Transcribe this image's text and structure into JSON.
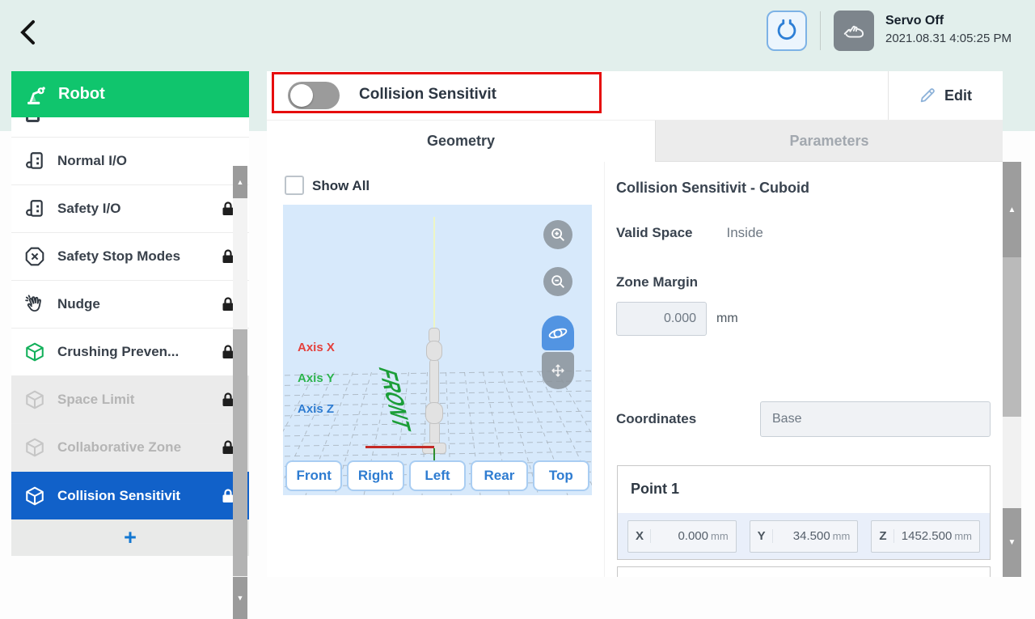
{
  "top_bar": {
    "status_title": "Servo Off",
    "status_time": "2021.08.31 4:05:25 PM"
  },
  "sidebar": {
    "title": "Robot",
    "items": [
      {
        "label": "Normal I/O",
        "icon": "io-icon",
        "locked": false,
        "state": "normal"
      },
      {
        "label": "Safety I/O",
        "icon": "io-icon",
        "locked": true,
        "state": "normal"
      },
      {
        "label": "Safety Stop Modes",
        "icon": "octagon-x-icon",
        "locked": true,
        "state": "normal"
      },
      {
        "label": "Nudge",
        "icon": "nudge-hand-icon",
        "locked": true,
        "state": "normal"
      },
      {
        "label": "Crushing Preven...",
        "icon": "cube-icon",
        "locked": true,
        "state": "normal"
      },
      {
        "label": "Space Limit",
        "icon": "cube-icon",
        "locked": true,
        "state": "disabled"
      },
      {
        "label": "Collaborative Zone",
        "icon": "cube-icon",
        "locked": true,
        "state": "disabled"
      },
      {
        "label": "Collision Sensitivit",
        "icon": "cube-icon",
        "locked": true,
        "state": "selected"
      }
    ],
    "add_label": "+"
  },
  "main": {
    "toggle_label": "Collision Sensitivit",
    "toggle_state": "off",
    "edit_label": "Edit",
    "tabs": [
      {
        "label": "Geometry",
        "active": true
      },
      {
        "label": "Parameters",
        "active": false
      }
    ],
    "viewer": {
      "show_all_label": "Show All",
      "show_all_checked": false,
      "axis_labels": [
        "Axis X",
        "Axis Y",
        "Axis Z"
      ],
      "front_label": "FRONT",
      "view_buttons": [
        "Front",
        "Right",
        "Left",
        "Rear",
        "Top"
      ]
    },
    "properties": {
      "heading": "Collision Sensitivit - Cuboid",
      "valid_space_label": "Valid Space",
      "valid_space_value": "Inside",
      "zone_margin_label": "Zone Margin",
      "zone_margin_value": "0.000",
      "zone_margin_unit": "mm",
      "coordinates_label": "Coordinates",
      "coordinates_value": "Base",
      "point1": {
        "title": "Point 1",
        "fields": [
          {
            "axis": "X",
            "value": "0.000",
            "unit": "mm"
          },
          {
            "axis": "Y",
            "value": "34.500",
            "unit": "mm"
          },
          {
            "axis": "Z",
            "value": "1452.500",
            "unit": "mm"
          }
        ]
      }
    }
  },
  "colors": {
    "sidebar_green": "#10c56d",
    "selected_blue": "#1161c9",
    "annotation_red": "#e60d0d",
    "viewport_blue": "#d7e9fb"
  }
}
